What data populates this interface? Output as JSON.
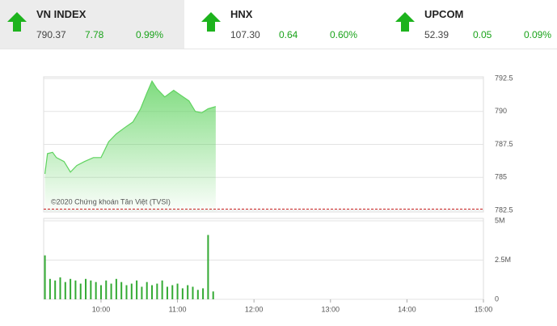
{
  "indices": [
    {
      "name": "VN INDEX",
      "value": "790.37",
      "change": "7.78",
      "percent": "0.99%"
    },
    {
      "name": "HNX",
      "value": "107.30",
      "change": "0.64",
      "percent": "0.60%"
    },
    {
      "name": "UPCOM",
      "value": "52.39",
      "change": "0.05",
      "percent": "0.09%"
    }
  ],
  "chart_data": [
    {
      "type": "area",
      "annotation": "©2020 Chứng khoán Tân Việt (TVSI)",
      "color": "#5fd35f",
      "reference": 782.59,
      "reference_color": "#cc2222",
      "x": [
        556,
        558,
        562,
        565,
        571,
        576,
        581,
        587,
        594,
        600,
        606,
        612,
        619,
        625,
        631,
        636,
        640,
        644,
        650,
        657,
        663,
        669,
        674,
        679,
        684,
        690
      ],
      "values": [
        785.26,
        786.8,
        786.9,
        786.5,
        786.2,
        785.4,
        785.9,
        786.2,
        786.5,
        786.5,
        787.7,
        788.3,
        788.8,
        789.2,
        790.2,
        791.4,
        792.3,
        791.7,
        791.1,
        791.6,
        791.2,
        790.8,
        790.0,
        789.9,
        790.2,
        790.37
      ],
      "xlim": [
        555,
        900
      ],
      "ylim": [
        782.5,
        792.5
      ],
      "yticks": [
        782.5,
        785,
        787.5,
        790,
        792.5
      ],
      "grid": true
    },
    {
      "type": "bar",
      "color": "#33aa33",
      "x": [
        556,
        560,
        564,
        568,
        572,
        576,
        580,
        584,
        588,
        592,
        596,
        600,
        604,
        608,
        612,
        616,
        620,
        624,
        628,
        632,
        636,
        640,
        644,
        648,
        652,
        656,
        660,
        664,
        668,
        672,
        676,
        680,
        684,
        688
      ],
      "values": [
        2800000,
        1300000,
        1200000,
        1400000,
        1100000,
        1300000,
        1200000,
        1000000,
        1300000,
        1200000,
        1100000,
        900000,
        1200000,
        1000000,
        1300000,
        1100000,
        900000,
        1000000,
        1200000,
        800000,
        1100000,
        900000,
        1000000,
        1200000,
        800000,
        900000,
        1000000,
        700000,
        900000,
        800000,
        600000,
        700000,
        4100000,
        500000
      ],
      "xlim": [
        555,
        900
      ],
      "ylim": [
        0,
        5000000
      ],
      "yticks": [
        0,
        {
          "value": 2500000,
          "label": "2.5M"
        },
        {
          "value": 5000000,
          "label": "5M"
        }
      ],
      "xticks": [
        {
          "value": 600,
          "label": "10:00"
        },
        {
          "value": 660,
          "label": "11:00"
        },
        {
          "value": 720,
          "label": "12:00"
        },
        {
          "value": 780,
          "label": "13:00"
        },
        {
          "value": 840,
          "label": "14:00"
        },
        {
          "value": 900,
          "label": "15:00"
        }
      ],
      "grid": true
    }
  ]
}
